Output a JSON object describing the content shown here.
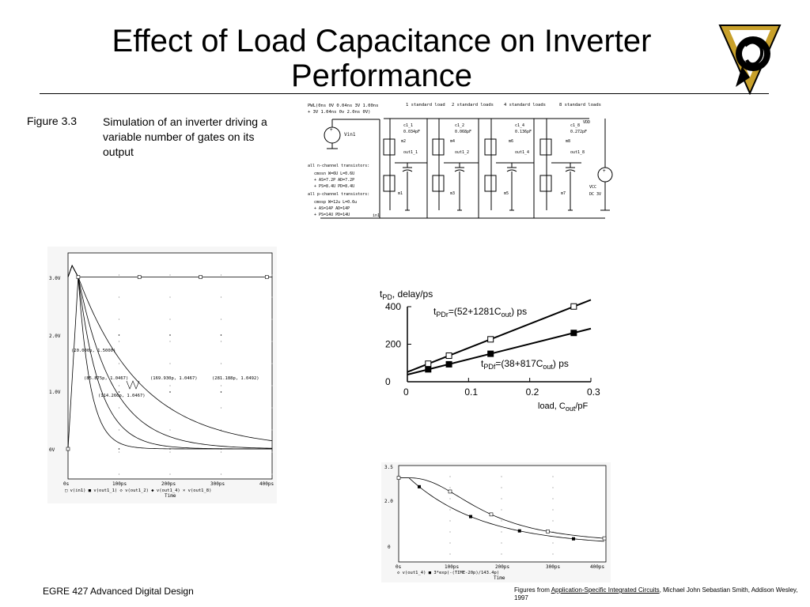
{
  "slide": {
    "title": "Effect of Load Capacitance on Inverter Performance"
  },
  "caption": {
    "figure_number": "Figure 3.3",
    "text": "Simulation of an inverter driving a variable number of gates on its output"
  },
  "circuit": {
    "source_spec_1": "PWL(0ns 0V 0.04ns 3V 1.00ns",
    "source_spec_2": "+ 3V 1.04ns 0v 2.0ns 0V)",
    "vin": "Vin1",
    "headers": [
      "1 standard load",
      "2 standard loads",
      "4 standard loads",
      "8 standard loads"
    ],
    "caps": [
      {
        "name": "c1_1",
        "value": "0.034pF",
        "out": "out1_1",
        "mp": "m2",
        "mn": "m1"
      },
      {
        "name": "c1_2",
        "value": "0.068pF",
        "out": "out1_2",
        "mp": "m4",
        "mn": "m3"
      },
      {
        "name": "c1_4",
        "value": "0.136pF",
        "out": "out1_4",
        "mp": "m6",
        "mn": "m5"
      },
      {
        "name": "c1_8",
        "value": "0.272pF",
        "out": "out1_8",
        "mp": "m8",
        "mn": "m7"
      }
    ],
    "vdd": "VDD",
    "vcc": "VCC",
    "vcc_value": "DC 3V",
    "in_label": "in1",
    "model_lines": [
      "all n-channel transistors:",
      "cmosn W=6U L=0.6U",
      "+ AS=7.2P AD=7.2P",
      "+ PS=8.4U PD=8.4U",
      "all p-channel transistors:",
      "cmosp W=12u L=0.6u",
      "+ AS=14P AD=14P",
      "+ PS=14U PD=14U"
    ]
  },
  "transient_plot": {
    "y_ticks": [
      "3.0V",
      "2.0V",
      "1.0V",
      "0V"
    ],
    "x_ticks": [
      "0s",
      "100ps",
      "200ps",
      "300ps",
      "400ps"
    ],
    "x_title": "Time",
    "legend": "□ v(in1)  ■ v(out1_1)  ◇ v(out1_2)  ◆ v(out1_4)  × v(out1_8)",
    "annotations": [
      "(20.000p, 1.5000)",
      "(85.875p, 1.0467)",
      "(114.260p, 1.0467)",
      "(169.930p, 1.0467)",
      "(281.188p, 1.0492)"
    ]
  },
  "chart_data": {
    "type": "scatter",
    "ylabel_parts": {
      "t": "t",
      "sub": "PD",
      "rest": ", delay/ps"
    },
    "xlabel_parts": {
      "pre": "load, C",
      "sub": "out",
      "post": "/pF"
    },
    "x_ticks": [
      "0",
      "0.1",
      "0.2",
      "0.3"
    ],
    "y_ticks": [
      "0",
      "200",
      "400"
    ],
    "xlim": [
      0,
      0.3
    ],
    "ylim": [
      0,
      400
    ],
    "series": [
      {
        "marker": "open-square",
        "x": [
          0.034,
          0.068,
          0.136,
          0.272
        ],
        "y": [
          96,
          139,
          226,
          401
        ],
        "fit_intercept": 52,
        "fit_slope": 1281,
        "label_parts": {
          "t": "t",
          "sub": "PDr",
          "eq": "=(52+1281C",
          "sub2": "out",
          "post": ") ps"
        }
      },
      {
        "marker": "filled-square",
        "x": [
          0.034,
          0.068,
          0.136,
          0.272
        ],
        "y": [
          66,
          93,
          149,
          260
        ],
        "fit_intercept": 38,
        "fit_slope": 817,
        "label_parts": {
          "t": "t",
          "sub": "PDf",
          "eq": "=(38+817C",
          "sub2": "out",
          "post": ") ps"
        }
      }
    ]
  },
  "fit_plot": {
    "y_ticks": [
      "3.5",
      "2.0",
      "0"
    ],
    "x_ticks": [
      "0s",
      "100ps",
      "200ps",
      "300ps",
      "400ps"
    ],
    "x_title": "Time",
    "legend": "◇ v(out1_4)  ■ 3*exp(-(TIME-20p)/143.4p)"
  },
  "footer": {
    "course": "EGRE 427 Advanced Digital Design",
    "ref_prefix": "Figures from ",
    "ref_link": "Application-Specific Integrated Circuits",
    "ref_suffix": ", Michael John Sebastian Smith, Addison Wesley, 1997"
  },
  "colors": {
    "text": "#000000",
    "logo_gold": "#c8a02a",
    "background": "#ffffff"
  }
}
